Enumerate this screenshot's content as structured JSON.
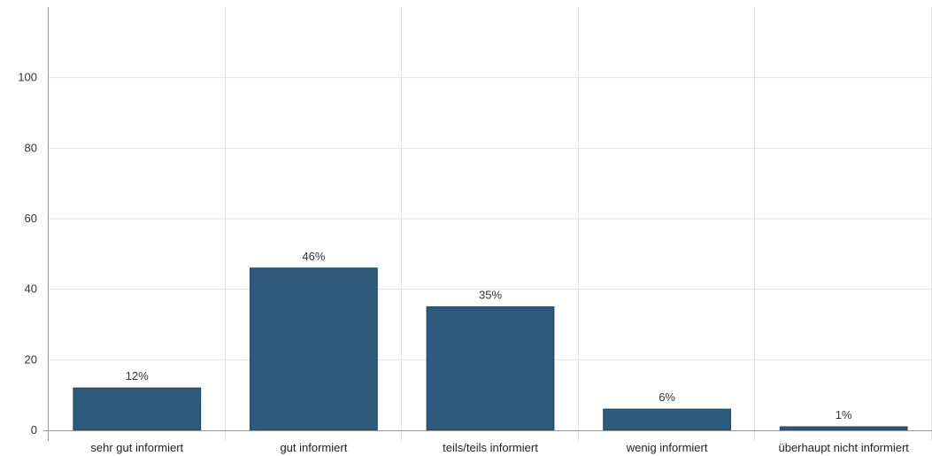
{
  "chart_data": {
    "type": "bar",
    "categories": [
      "sehr gut informiert",
      "gut informiert",
      "teils/teils informiert",
      "wenig informiert",
      "überhaupt nicht informiert"
    ],
    "values": [
      12,
      46,
      35,
      6,
      1
    ],
    "data_labels": [
      "12%",
      "46%",
      "35%",
      "6%",
      "1%"
    ],
    "y_ticks": [
      0,
      20,
      40,
      60,
      80,
      100
    ],
    "ylim": [
      0,
      120
    ],
    "grid": true,
    "bar_color": "#2e5a7c",
    "bar_stroke": "#1d3f5a",
    "grid_color": "#e2e2e2"
  }
}
